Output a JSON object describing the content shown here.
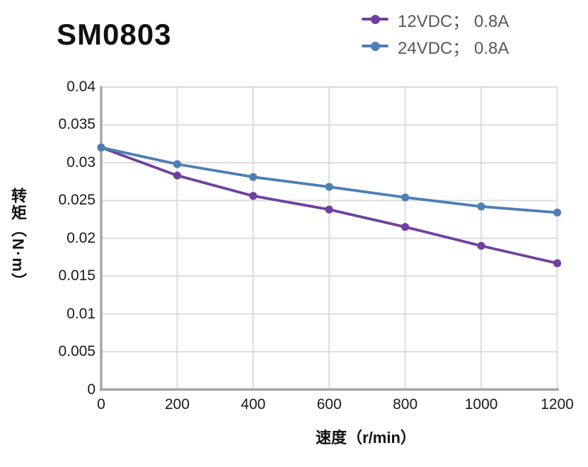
{
  "title": "SM0803",
  "colors": {
    "grid": "#DCDCDC",
    "axis": "#A6A6A6",
    "tick_text": "#1A1A1A",
    "legend_text": "#585858",
    "series_12vdc": "#71409E",
    "series_24vdc": "#4E7EB5"
  },
  "chart_data": {
    "type": "line",
    "title": "SM0803",
    "xlabel": "速度（r/min）",
    "ylabel": "转矩（N·m）",
    "xlim": [
      0,
      1200
    ],
    "ylim": [
      0,
      0.04
    ],
    "grid": true,
    "legend_position": "top-right",
    "x": [
      0,
      200,
      400,
      600,
      800,
      1000,
      1200
    ],
    "x_ticks": [
      "0",
      "200",
      "400",
      "600",
      "800",
      "1000",
      "1200"
    ],
    "y_ticks": [
      "0",
      "0.005",
      "0.01",
      "0.015",
      "0.02",
      "0.025",
      "0.03",
      "0.035",
      "0.04"
    ],
    "series": [
      {
        "id": "12vdc",
        "name": "12VDC； 0.8A",
        "color": "#71409E",
        "marker": "circle",
        "values": [
          0.032,
          0.0283,
          0.0256,
          0.0238,
          0.0215,
          0.019,
          0.0167
        ]
      },
      {
        "id": "24vdc",
        "name": "24VDC； 0.8A",
        "color": "#4E7EB5",
        "marker": "circle",
        "values": [
          0.032,
          0.0298,
          0.0281,
          0.0268,
          0.0254,
          0.0242,
          0.0234
        ]
      }
    ]
  }
}
